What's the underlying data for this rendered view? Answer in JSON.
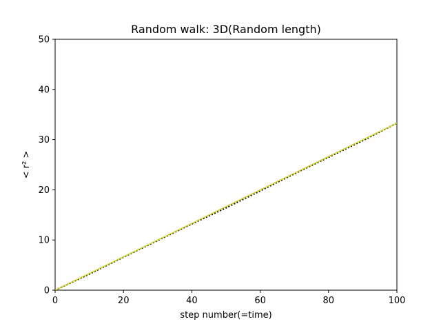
{
  "chart_data": {
    "type": "line",
    "title": "Random walk: 3D(Random length)",
    "xlabel": "step number(=time)",
    "ylabel": "< r² >",
    "xlim": [
      0,
      100
    ],
    "ylim": [
      0,
      50
    ],
    "xticks": [
      "0",
      "20",
      "40",
      "60",
      "80",
      "100"
    ],
    "yticks": [
      "0",
      "10",
      "20",
      "30",
      "40",
      "50"
    ],
    "grid": false,
    "legend": "none",
    "series": [
      {
        "style": "dotted",
        "color": "#000000",
        "x": [
          0,
          10,
          20,
          30,
          40,
          50,
          60,
          70,
          80,
          90,
          100
        ],
        "y": [
          0,
          3.2,
          6.6,
          9.9,
          13.2,
          16.4,
          19.8,
          23.2,
          26.5,
          29.8,
          33.3
        ]
      },
      {
        "style": "solid",
        "color": "#d4d42a",
        "x": [
          0,
          100
        ],
        "y": [
          0,
          33.3
        ]
      }
    ]
  }
}
